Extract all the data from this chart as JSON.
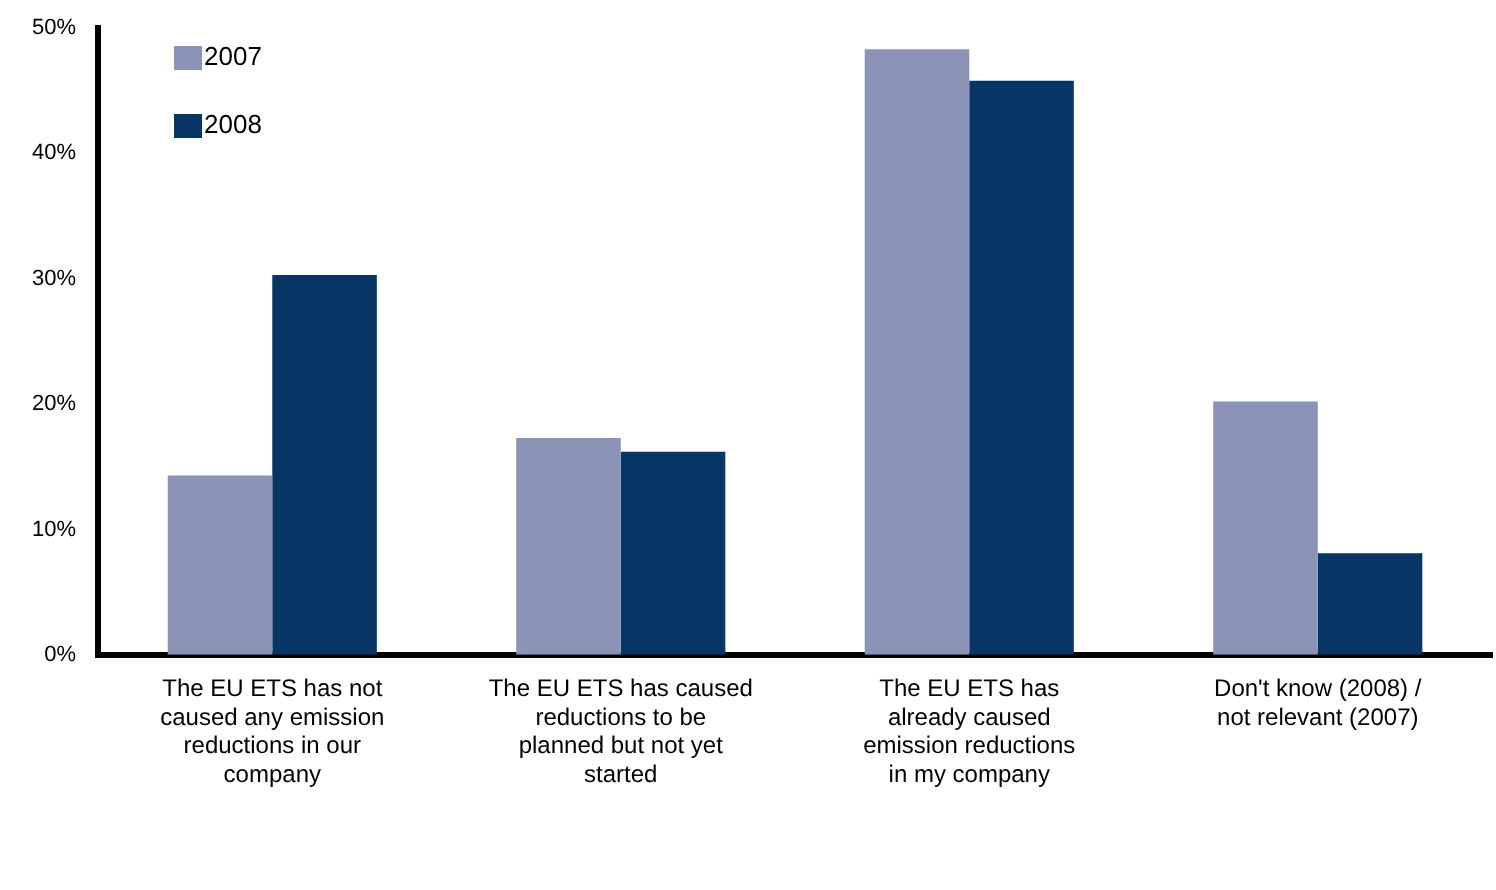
{
  "chart_data": {
    "type": "bar",
    "categories": [
      "The EU ETS has not caused any emission reductions in our company",
      "The EU ETS has caused reductions to be planned but not yet started",
      "The EU ETS has already caused emission reductions in my company",
      "Don't know (2008) / not relevant (2007)"
    ],
    "series": [
      {
        "name": "2007",
        "color": "#8b93b7",
        "values": [
          14.3,
          17.3,
          48.3,
          20.2
        ]
      },
      {
        "name": "2008",
        "color": "#073566",
        "values": [
          30.3,
          16.2,
          45.8,
          8.1
        ]
      }
    ],
    "ylim": [
      0,
      50
    ],
    "yticks": [
      {
        "value": 0,
        "label": "0%"
      },
      {
        "value": 10,
        "label": "10%"
      },
      {
        "value": 20,
        "label": "20%"
      },
      {
        "value": 30,
        "label": "30%"
      },
      {
        "value": 40,
        "label": "40%"
      },
      {
        "value": 50,
        "label": "50%"
      }
    ],
    "grid": false,
    "legend": "top left"
  }
}
